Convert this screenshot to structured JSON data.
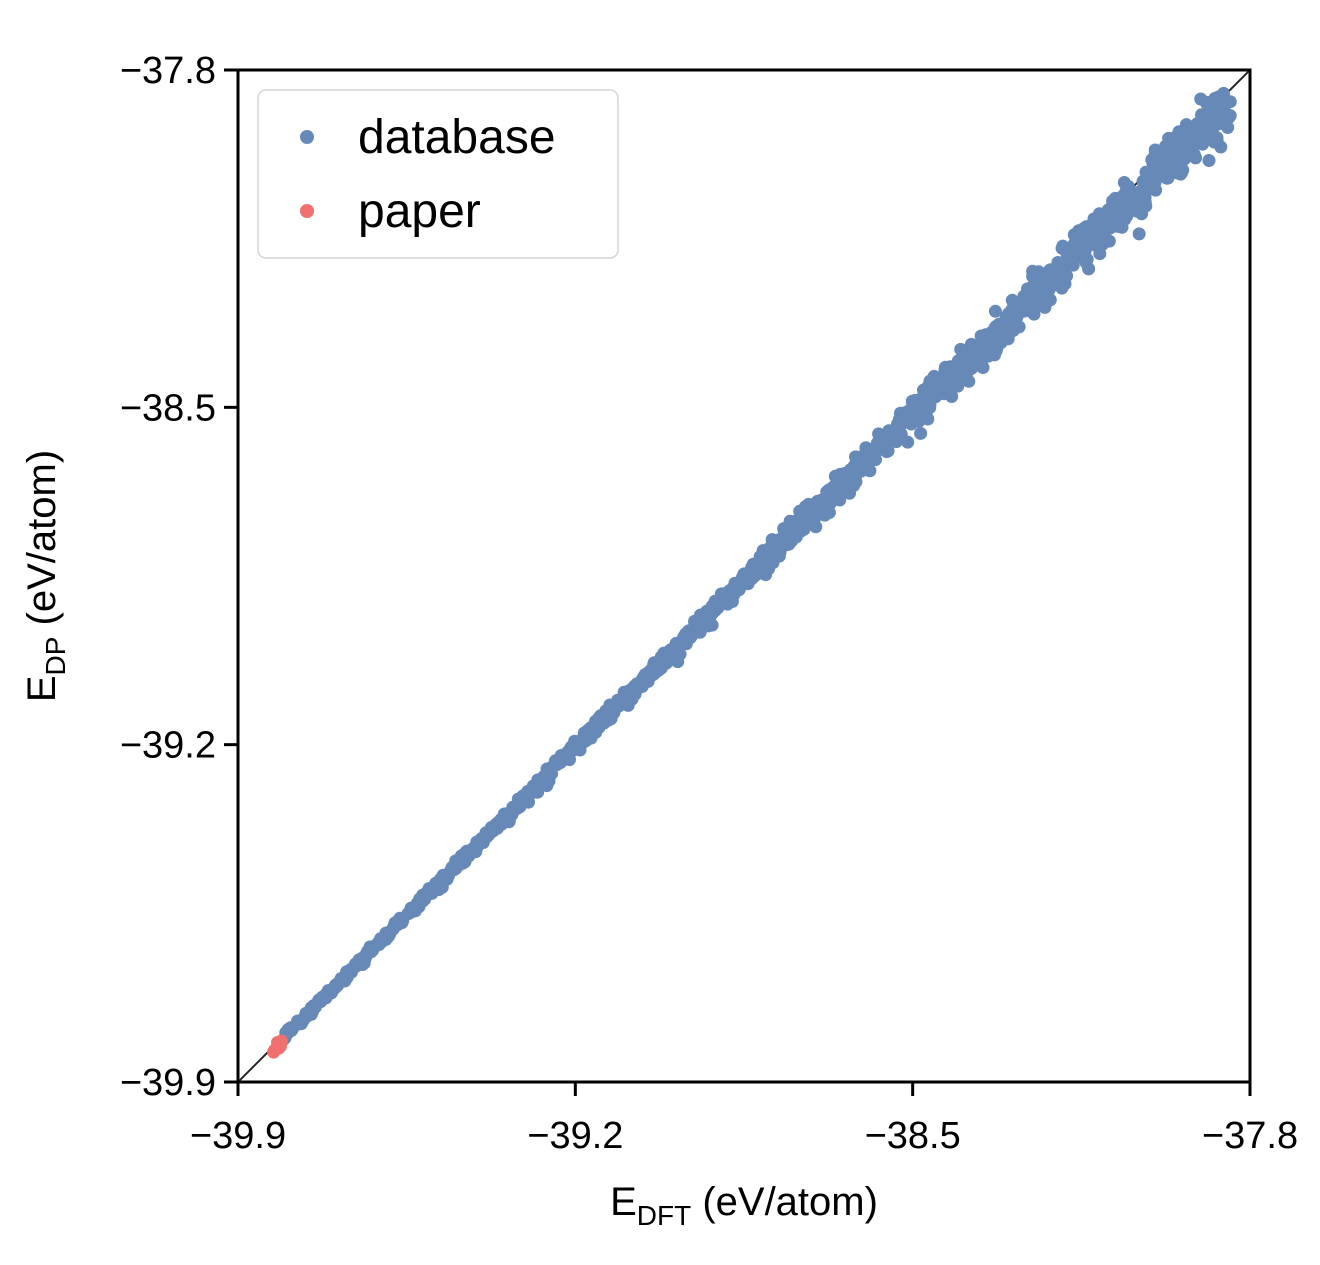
{
  "chart_data": {
    "type": "scatter",
    "title": "",
    "xlabel": {
      "main": "E",
      "sub": "DFT",
      "unit": " (eV/atom)"
    },
    "ylabel": {
      "main": "E",
      "sub": "DP",
      "unit": " (eV/atom)"
    },
    "xlim": [
      -39.9,
      -37.8
    ],
    "ylim": [
      -39.9,
      -37.8
    ],
    "xticks": [
      -39.9,
      -39.2,
      -38.5,
      -37.8
    ],
    "yticks": [
      -39.9,
      -39.2,
      -38.5,
      -37.8
    ],
    "xtick_labels": [
      "−39.9",
      "−39.2",
      "−38.5",
      "−37.8"
    ],
    "ytick_labels": [
      "−39.9",
      "−39.2",
      "−38.5",
      "−37.8"
    ],
    "grid": false,
    "legend_position": "top-left",
    "reference_line": {
      "type": "y=x",
      "color": "#222222"
    },
    "series": [
      {
        "name": "database",
        "color": "#6689b8",
        "x_range": [
          -39.81,
          -37.84
        ],
        "trend": "y = x",
        "spread_at_low_x": 0.008,
        "spread_at_high_x": 0.06,
        "outlier_points": [
          {
            "x": -37.87,
            "y": -37.86
          },
          {
            "x": -37.855,
            "y": -37.89
          },
          {
            "x": -37.845,
            "y": -37.895
          },
          {
            "x": -38.02,
            "y": -38.04
          },
          {
            "x": -38.06,
            "y": -38.11
          },
          {
            "x": -38.03,
            "y": -38.14
          },
          {
            "x": -38.14,
            "y": -38.2
          },
          {
            "x": -38.19,
            "y": -38.17
          }
        ]
      },
      {
        "name": "paper",
        "color": "#f07070",
        "points": [
          {
            "x": -39.815,
            "y": -39.822
          },
          {
            "x": -39.82,
            "y": -39.83
          },
          {
            "x": -39.812,
            "y": -39.826
          },
          {
            "x": -39.824,
            "y": -39.834
          },
          {
            "x": -39.818,
            "y": -39.818
          },
          {
            "x": -39.81,
            "y": -39.815
          },
          {
            "x": -39.826,
            "y": -39.838
          },
          {
            "x": -39.816,
            "y": -39.83
          }
        ]
      }
    ]
  },
  "legend": {
    "items": [
      {
        "label": "database",
        "color": "#6689b8"
      },
      {
        "label": "paper",
        "color": "#f07070"
      }
    ]
  }
}
